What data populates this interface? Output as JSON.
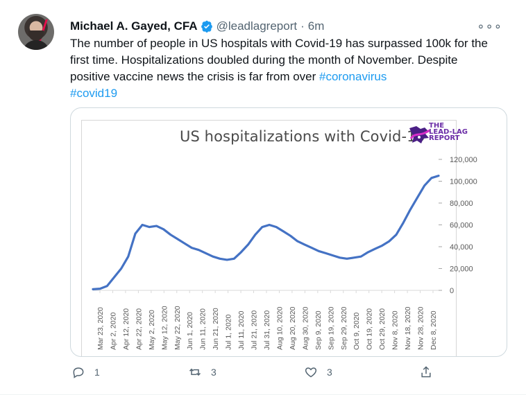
{
  "tweet": {
    "author": {
      "name": "Michael A. Gayed, CFA",
      "handle": "@leadlagreport",
      "separator": "·",
      "time": "6m"
    },
    "text_plain": "The number of people in US hospitals with Covid-19 has surpassed 100k for the first time. Hospitalizations doubled during the month of November. Despite positive vaccine news the crisis is far from over ",
    "hashtag_1": "#coronavirus",
    "hashtag_2": "#covid19",
    "more_icon": "more-dots-icon",
    "actions": {
      "reply_count": "1",
      "retweet_count": "3",
      "like_count": "3"
    },
    "colors": {
      "accent": "#1d9bf0",
      "line": "#4472c4",
      "verified": "#1d9bf0"
    }
  },
  "logo": {
    "line1": "THE",
    "line2": "LEAD-LAG",
    "line3": "REPORT"
  },
  "chart_data": {
    "type": "line",
    "title": "US hospitalizations with Covid-19",
    "xlabel": "",
    "ylabel": "",
    "ylim": [
      0,
      120000
    ],
    "ytick_labels": [
      "120,000",
      "100,000",
      "80,000",
      "60,000",
      "40,000",
      "20,000",
      "0"
    ],
    "ytick_values": [
      120000,
      100000,
      80000,
      60000,
      40000,
      20000,
      0
    ],
    "xtick_labels": [
      "Mar 23, 2020",
      "Apr 2, 2020",
      "Apr 12, 2020",
      "Apr 22, 2020",
      "May 2, 2020",
      "May 12, 2020",
      "May 22, 2020",
      "Jun 1, 2020",
      "Jun 11, 2020",
      "Jun 21, 2020",
      "Jul 1, 2020",
      "Jul 11, 2020",
      "Jul 21, 2020",
      "Jul 31, 2020",
      "Aug 10, 2020",
      "Aug 20, 2020",
      "Aug 30, 2020",
      "Sep 9, 2020",
      "Sep 19, 2020",
      "Sep 29, 2020",
      "Oct 9, 2020",
      "Oct 19, 2020",
      "Oct 29, 2020",
      "Nov 8, 2020",
      "Nov 18, 2020",
      "Nov 28, 2020",
      "Dec 8, 2020"
    ],
    "series": [
      {
        "values": [
          1000,
          1500,
          4000,
          12000,
          20000,
          31000,
          52000,
          60000,
          58000,
          59000,
          56000,
          51000,
          47000,
          43000,
          39000,
          37000,
          34000,
          31000,
          29000,
          28000,
          29000,
          35000,
          42000,
          51000,
          58000,
          60000,
          58000,
          54000,
          50000,
          45000,
          42000,
          39000,
          36000,
          34000,
          32000,
          30000,
          29000,
          30000,
          31000,
          35000,
          38000,
          41000,
          45000,
          51000,
          62000,
          74000,
          85000,
          96000,
          103000,
          105000
        ]
      }
    ],
    "grid": false,
    "legend": "none"
  }
}
